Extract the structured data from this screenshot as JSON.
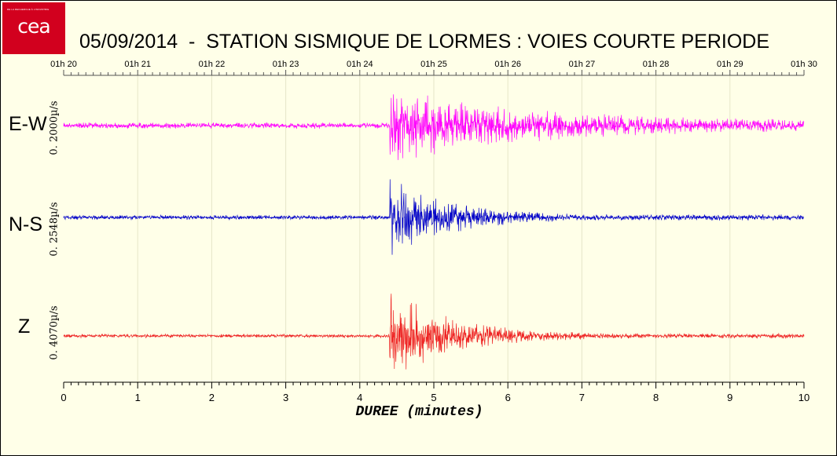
{
  "logo": {
    "brand": "cea",
    "tagline": "DE LA RECHERCHE À L'INDUSTRIE"
  },
  "title": "05/09/2014  -  STATION SISMIQUE DE LORMES : VOIES COURTE PERIODE",
  "chart_data": {
    "type": "line",
    "title": "05/09/2014  -  STATION SISMIQUE DE LORMES : VOIES COURTE PERIODE",
    "xlabel": "DUREE (minutes)",
    "xlim": [
      0,
      10
    ],
    "x_ticks": [
      "0",
      "1",
      "2",
      "3",
      "4",
      "5",
      "6",
      "7",
      "8",
      "9",
      "10"
    ],
    "top_axis_ticks": [
      "01h 20",
      "01h 21",
      "01h 22",
      "01h 23",
      "01h 24",
      "01h 25",
      "01h 26",
      "01h 27",
      "01h 28",
      "01h 29",
      "01h 30"
    ],
    "grid": true,
    "channels": [
      {
        "label": "E-W",
        "scale": "0. 2000µ/s",
        "color": "#ff00ff",
        "event_onset_min": 4.4,
        "coda_relative_level": 0.45,
        "peak_relative_amplitude": 0.9
      },
      {
        "label": "N-S",
        "scale": "0. 2548µ/s",
        "color": "#0000c8",
        "event_onset_min": 4.4,
        "coda_relative_level": 0.25,
        "peak_relative_amplitude": 1.0
      },
      {
        "label": "Z",
        "scale": "0. 4070µ/s",
        "color": "#ee2222",
        "event_onset_min": 4.4,
        "coda_relative_level": 0.22,
        "peak_relative_amplitude": 1.0
      }
    ]
  }
}
